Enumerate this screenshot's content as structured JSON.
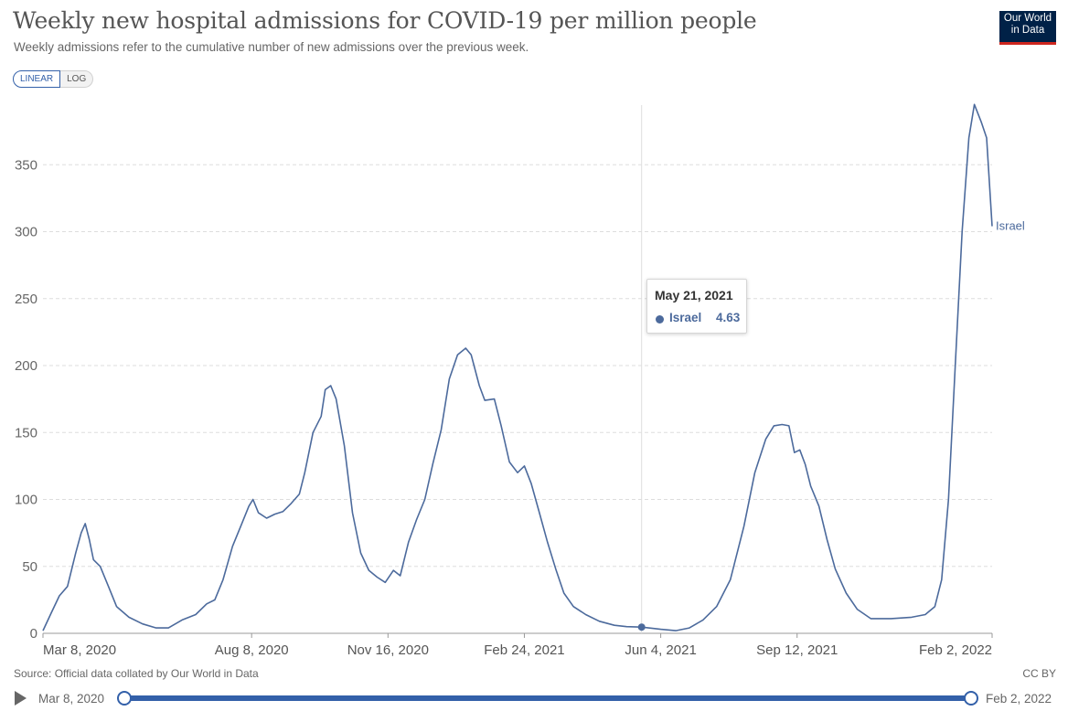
{
  "header": {
    "title": "Weekly new hospital admissions for COVID-19 per million people",
    "subtitle": "Weekly admissions refer to the cumulative number of new admissions over the previous week.",
    "logo_line1": "Our World",
    "logo_line2": "in Data"
  },
  "controls": {
    "linear_label": "LINEAR",
    "log_label": "LOG",
    "selected": "LINEAR"
  },
  "tooltip": {
    "date": "May 21, 2021",
    "series": "Israel",
    "value": "4.63"
  },
  "footer": {
    "source": "Source: Official data collated by Our World in Data",
    "license": "CC BY"
  },
  "timeline": {
    "start": "Mar 8, 2020",
    "end": "Feb 2, 2022"
  },
  "colors": {
    "series": "#4c6a9c",
    "accent": "#3360a9",
    "logo_bg": "#002147",
    "logo_bar": "#ce261e"
  },
  "chart_data": {
    "type": "line",
    "title": "Weekly new hospital admissions for COVID-19 per million people",
    "xlabel": "",
    "ylabel": "",
    "x_range": [
      "2020-03-08",
      "2022-02-02"
    ],
    "ylim": [
      0,
      400
    ],
    "y_ticks": [
      0,
      50,
      100,
      150,
      200,
      250,
      300,
      350
    ],
    "x_ticks": [
      {
        "date": "2020-03-08",
        "label": "Mar 8, 2020"
      },
      {
        "date": "2020-08-08",
        "label": "Aug 8, 2020"
      },
      {
        "date": "2020-11-16",
        "label": "Nov 16, 2020"
      },
      {
        "date": "2021-02-24",
        "label": "Feb 24, 2021"
      },
      {
        "date": "2021-06-04",
        "label": "Jun 4, 2021"
      },
      {
        "date": "2021-09-12",
        "label": "Sep 12, 2021"
      },
      {
        "date": "2022-02-02",
        "label": "Feb 2, 2022"
      }
    ],
    "grid": "horizontal dashed",
    "series": [
      {
        "name": "Israel",
        "points": [
          [
            "2020-03-08",
            2
          ],
          [
            "2020-03-14",
            15
          ],
          [
            "2020-03-20",
            28
          ],
          [
            "2020-03-26",
            35
          ],
          [
            "2020-04-01",
            60
          ],
          [
            "2020-04-05",
            75
          ],
          [
            "2020-04-08",
            82
          ],
          [
            "2020-04-11",
            70
          ],
          [
            "2020-04-14",
            55
          ],
          [
            "2020-04-19",
            50
          ],
          [
            "2020-04-25",
            35
          ],
          [
            "2020-05-01",
            20
          ],
          [
            "2020-05-10",
            12
          ],
          [
            "2020-05-20",
            7
          ],
          [
            "2020-05-30",
            4
          ],
          [
            "2020-06-08",
            4
          ],
          [
            "2020-06-18",
            10
          ],
          [
            "2020-06-28",
            14
          ],
          [
            "2020-07-06",
            22
          ],
          [
            "2020-07-12",
            25
          ],
          [
            "2020-07-18",
            40
          ],
          [
            "2020-07-25",
            65
          ],
          [
            "2020-07-31",
            80
          ],
          [
            "2020-08-06",
            95
          ],
          [
            "2020-08-09",
            100
          ],
          [
            "2020-08-13",
            90
          ],
          [
            "2020-08-19",
            86
          ],
          [
            "2020-08-25",
            89
          ],
          [
            "2020-08-31",
            91
          ],
          [
            "2020-09-06",
            97
          ],
          [
            "2020-09-12",
            104
          ],
          [
            "2020-09-16",
            120
          ],
          [
            "2020-09-22",
            150
          ],
          [
            "2020-09-28",
            162
          ],
          [
            "2020-10-01",
            182
          ],
          [
            "2020-10-05",
            185
          ],
          [
            "2020-10-09",
            175
          ],
          [
            "2020-10-15",
            140
          ],
          [
            "2020-10-21",
            90
          ],
          [
            "2020-10-27",
            60
          ],
          [
            "2020-11-02",
            47
          ],
          [
            "2020-11-08",
            42
          ],
          [
            "2020-11-14",
            38
          ],
          [
            "2020-11-20",
            47
          ],
          [
            "2020-11-25",
            43
          ],
          [
            "2020-12-01",
            68
          ],
          [
            "2020-12-07",
            85
          ],
          [
            "2020-12-13",
            100
          ],
          [
            "2020-12-19",
            127
          ],
          [
            "2020-12-25",
            152
          ],
          [
            "2020-12-31",
            190
          ],
          [
            "2021-01-06",
            208
          ],
          [
            "2021-01-12",
            213
          ],
          [
            "2021-01-16",
            208
          ],
          [
            "2021-01-22",
            185
          ],
          [
            "2021-01-26",
            174
          ],
          [
            "2021-02-02",
            175
          ],
          [
            "2021-02-07",
            155
          ],
          [
            "2021-02-13",
            128
          ],
          [
            "2021-02-19",
            120
          ],
          [
            "2021-02-24",
            125
          ],
          [
            "2021-03-01",
            112
          ],
          [
            "2021-03-07",
            90
          ],
          [
            "2021-03-13",
            68
          ],
          [
            "2021-03-19",
            48
          ],
          [
            "2021-03-25",
            30
          ],
          [
            "2021-04-01",
            20
          ],
          [
            "2021-04-10",
            14
          ],
          [
            "2021-04-20",
            9
          ],
          [
            "2021-05-01",
            6
          ],
          [
            "2021-05-10",
            5
          ],
          [
            "2021-05-21",
            4.63
          ],
          [
            "2021-06-04",
            3
          ],
          [
            "2021-06-15",
            2
          ],
          [
            "2021-06-25",
            4
          ],
          [
            "2021-07-05",
            10
          ],
          [
            "2021-07-15",
            20
          ],
          [
            "2021-07-25",
            40
          ],
          [
            "2021-08-04",
            80
          ],
          [
            "2021-08-12",
            120
          ],
          [
            "2021-08-20",
            145
          ],
          [
            "2021-08-26",
            155
          ],
          [
            "2021-09-01",
            156
          ],
          [
            "2021-09-06",
            155
          ],
          [
            "2021-09-10",
            135
          ],
          [
            "2021-09-14",
            137
          ],
          [
            "2021-09-18",
            126
          ],
          [
            "2021-09-22",
            110
          ],
          [
            "2021-09-28",
            95
          ],
          [
            "2021-10-04",
            70
          ],
          [
            "2021-10-10",
            48
          ],
          [
            "2021-10-18",
            30
          ],
          [
            "2021-10-26",
            18
          ],
          [
            "2021-11-05",
            11
          ],
          [
            "2021-11-20",
            11
          ],
          [
            "2021-12-05",
            12
          ],
          [
            "2021-12-15",
            14
          ],
          [
            "2021-12-22",
            20
          ],
          [
            "2021-12-27",
            40
          ],
          [
            "2022-01-01",
            100
          ],
          [
            "2022-01-06",
            200
          ],
          [
            "2022-01-11",
            300
          ],
          [
            "2022-01-16",
            370
          ],
          [
            "2022-01-20",
            395
          ],
          [
            "2022-01-25",
            382
          ],
          [
            "2022-01-29",
            370
          ],
          [
            "2022-02-02",
            304
          ]
        ]
      }
    ],
    "legend": "end-of-line label",
    "highlight": {
      "date": "2021-05-21",
      "value": 4.63
    }
  }
}
